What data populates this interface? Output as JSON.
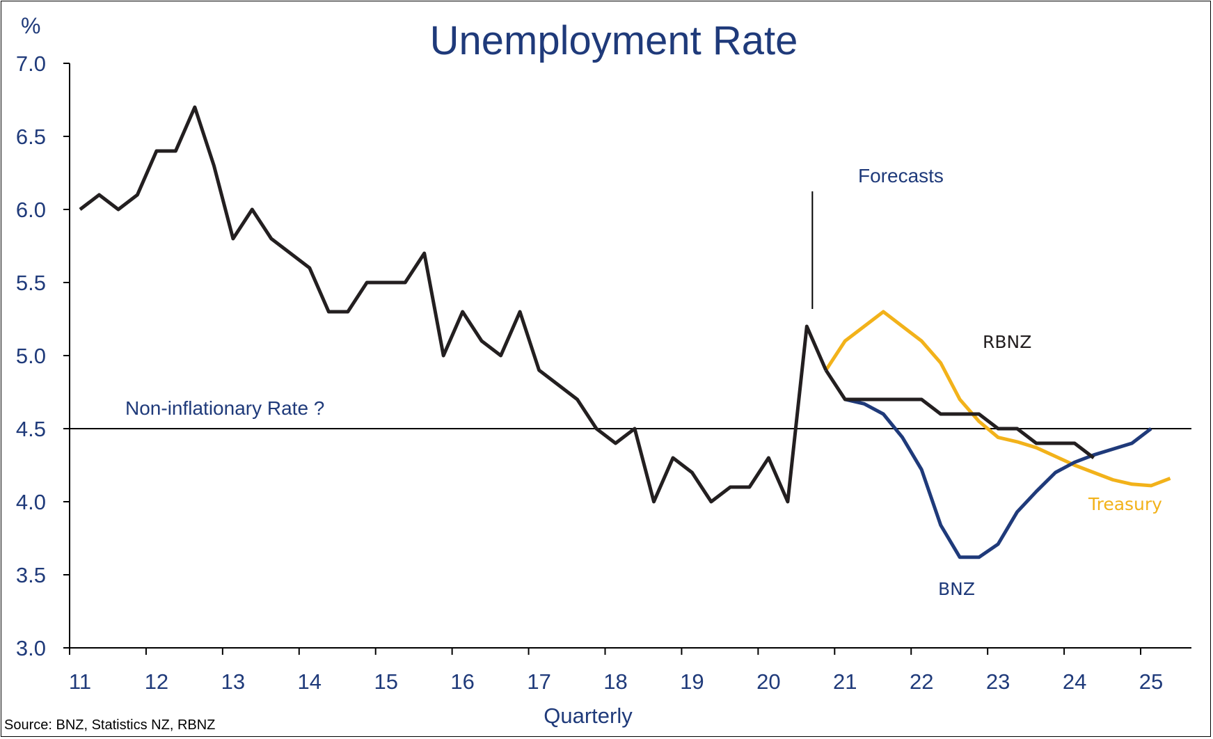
{
  "chart_data": {
    "type": "line",
    "title": "Unemployment Rate",
    "unit_label": "%",
    "xlabel": "Quarterly",
    "ylabel": "",
    "ylim": [
      3.0,
      7.0
    ],
    "yticks": [
      "7.0",
      "6.5",
      "6.0",
      "5.5",
      "5.0",
      "4.5",
      "4.0",
      "3.5",
      "3.0"
    ],
    "xticks": [
      "11",
      "12",
      "13",
      "14",
      "15",
      "16",
      "17",
      "18",
      "19",
      "20",
      "21",
      "22",
      "23",
      "24",
      "25"
    ],
    "grid": false,
    "reference_line": {
      "value": 4.5,
      "label": "Non-inflationary Rate ?"
    },
    "forecast_marker": {
      "x": 2020.5,
      "label": "Forecasts"
    },
    "series": [
      {
        "name": "",
        "color": "#231f20",
        "x": [
          2011.0,
          2011.25,
          2011.5,
          2011.75,
          2012.0,
          2012.25,
          2012.5,
          2012.75,
          2013.0,
          2013.25,
          2013.5,
          2013.75,
          2014.0,
          2014.25,
          2014.5,
          2014.75,
          2015.0,
          2015.25,
          2015.5,
          2015.75,
          2016.0,
          2016.25,
          2016.5,
          2016.75,
          2017.0,
          2017.25,
          2017.5,
          2017.75,
          2018.0,
          2018.25,
          2018.5,
          2018.75,
          2019.0,
          2019.25,
          2019.5,
          2019.75,
          2020.0,
          2020.25,
          2020.5,
          2020.75
        ],
        "values": [
          6.0,
          6.1,
          6.0,
          6.1,
          6.4,
          6.4,
          6.7,
          6.3,
          5.8,
          6.0,
          5.8,
          5.7,
          5.6,
          5.3,
          5.3,
          5.5,
          5.5,
          5.5,
          5.7,
          5.0,
          5.3,
          5.1,
          5.0,
          5.3,
          4.9,
          4.8,
          4.7,
          4.5,
          4.4,
          4.5,
          4.0,
          4.3,
          4.2,
          4.0,
          4.1,
          4.1,
          4.3,
          4.0,
          5.2,
          4.9
        ]
      },
      {
        "name": "RBNZ",
        "color": "#231f20",
        "label_color": "#231f20",
        "x": [
          2020.75,
          2021.0,
          2021.25,
          2021.5,
          2021.75,
          2022.0,
          2022.25,
          2022.5,
          2022.75,
          2023.0,
          2023.25,
          2023.5,
          2023.75,
          2024.0,
          2024.25
        ],
        "values": [
          4.9,
          4.7,
          4.7,
          4.7,
          4.7,
          4.7,
          4.6,
          4.6,
          4.6,
          4.5,
          4.5,
          4.4,
          4.4,
          4.4,
          4.3
        ]
      },
      {
        "name": "Treasury",
        "color": "#f2b21a",
        "label_color": "#f2b21a",
        "x": [
          2020.75,
          2021.0,
          2021.25,
          2021.5,
          2021.75,
          2022.0,
          2022.25,
          2022.5,
          2022.75,
          2023.0,
          2023.25,
          2023.5,
          2023.75,
          2024.0,
          2024.25,
          2024.5,
          2024.75,
          2025.0,
          2025.25
        ],
        "values": [
          4.9,
          5.1,
          5.2,
          5.3,
          5.2,
          5.1,
          4.95,
          4.7,
          4.55,
          4.44,
          4.41,
          4.37,
          4.31,
          4.25,
          4.2,
          4.15,
          4.12,
          4.11,
          4.16
        ]
      },
      {
        "name": "BNZ",
        "color": "#1f3a7a",
        "label_color": "#1f3a7a",
        "x": [
          2021.0,
          2021.25,
          2021.5,
          2021.75,
          2022.0,
          2022.25,
          2022.5,
          2022.75,
          2023.0,
          2023.25,
          2023.5,
          2023.75,
          2024.0,
          2024.25,
          2024.5,
          2024.75,
          2025.0
        ],
        "values": [
          4.7,
          4.67,
          4.6,
          4.44,
          4.22,
          3.84,
          3.62,
          3.62,
          3.71,
          3.93,
          4.07,
          4.2,
          4.27,
          4.32,
          4.36,
          4.4,
          4.5
        ]
      }
    ]
  },
  "source_note": "Source: BNZ, Statistics NZ, RBNZ"
}
